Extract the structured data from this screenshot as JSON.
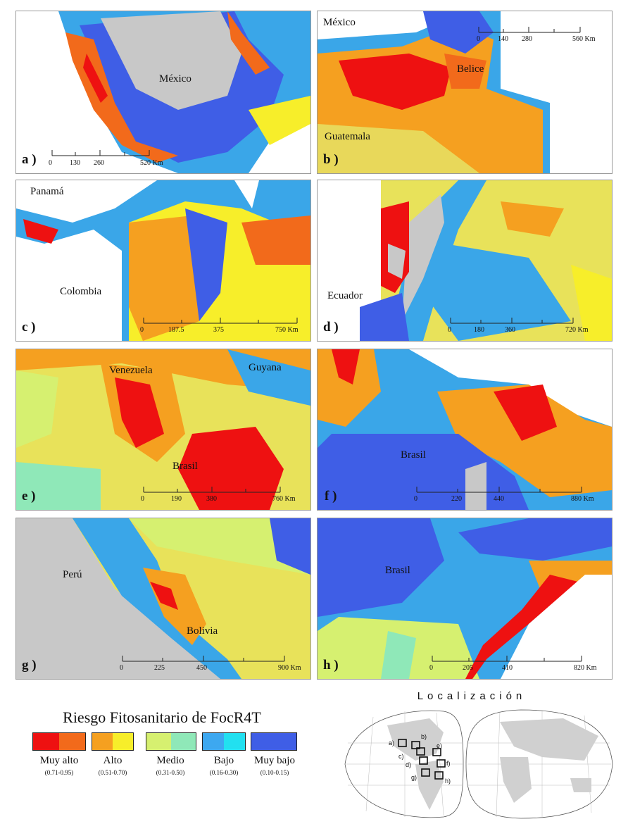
{
  "panels": [
    {
      "id": "a",
      "label": "a )",
      "places": [
        "México"
      ],
      "scale": [
        "0",
        "130",
        "260",
        "520 Km"
      ]
    },
    {
      "id": "b",
      "label": "b )",
      "places": [
        "México",
        "Belice",
        "Guatemala"
      ],
      "scale": [
        "0",
        "140",
        "280",
        "560 Km"
      ]
    },
    {
      "id": "c",
      "label": "c )",
      "places": [
        "Panamá",
        "Colombia"
      ],
      "scale": [
        "0",
        "187.5",
        "375",
        "750 Km"
      ]
    },
    {
      "id": "d",
      "label": "d )",
      "places": [
        "Ecuador"
      ],
      "scale": [
        "0",
        "180",
        "360",
        "720 Km"
      ]
    },
    {
      "id": "e",
      "label": "e )",
      "places": [
        "Venezuela",
        "Guyana",
        "Brasil"
      ],
      "scale": [
        "0",
        "190",
        "380",
        "760 Km"
      ]
    },
    {
      "id": "f",
      "label": "f )",
      "places": [
        "Brasil"
      ],
      "scale": [
        "0",
        "220",
        "440",
        "880 Km"
      ]
    },
    {
      "id": "g",
      "label": "g )",
      "places": [
        "Perú",
        "Bolivia"
      ],
      "scale": [
        "0",
        "225",
        "450",
        "900 Km"
      ]
    },
    {
      "id": "h",
      "label": "h )",
      "places": [
        "Brasil"
      ],
      "scale": [
        "0",
        "205",
        "410",
        "820 Km"
      ]
    }
  ],
  "legend": {
    "title": "Riesgo Fitosanitario de FocR4T",
    "classes": [
      {
        "name": "Muy alto",
        "range": "(0.71-0.95)",
        "colors": [
          "#ee1111",
          "#f26a1b"
        ]
      },
      {
        "name": "Alto",
        "range": "(0.51-0.70)",
        "colors": [
          "#f5a020",
          "#f7ee2a"
        ]
      },
      {
        "name": "Medio",
        "range": "(0.31-0.50)",
        "colors": [
          "#d6f070",
          "#8fe8b8"
        ]
      },
      {
        "name": "Bajo",
        "range": "(0.16-0.30)",
        "colors": [
          "#3da8f0",
          "#22e0f0"
        ]
      },
      {
        "name": "Muy bajo",
        "range": "(0.10-0.15)",
        "colors": [
          "#3f5ee6",
          "#3f5ee6"
        ]
      }
    ]
  },
  "locator": {
    "title": "Localización",
    "markers": [
      "a)",
      "b)",
      "c)",
      "d)",
      "e)",
      "f)",
      "g)",
      "h)"
    ]
  }
}
